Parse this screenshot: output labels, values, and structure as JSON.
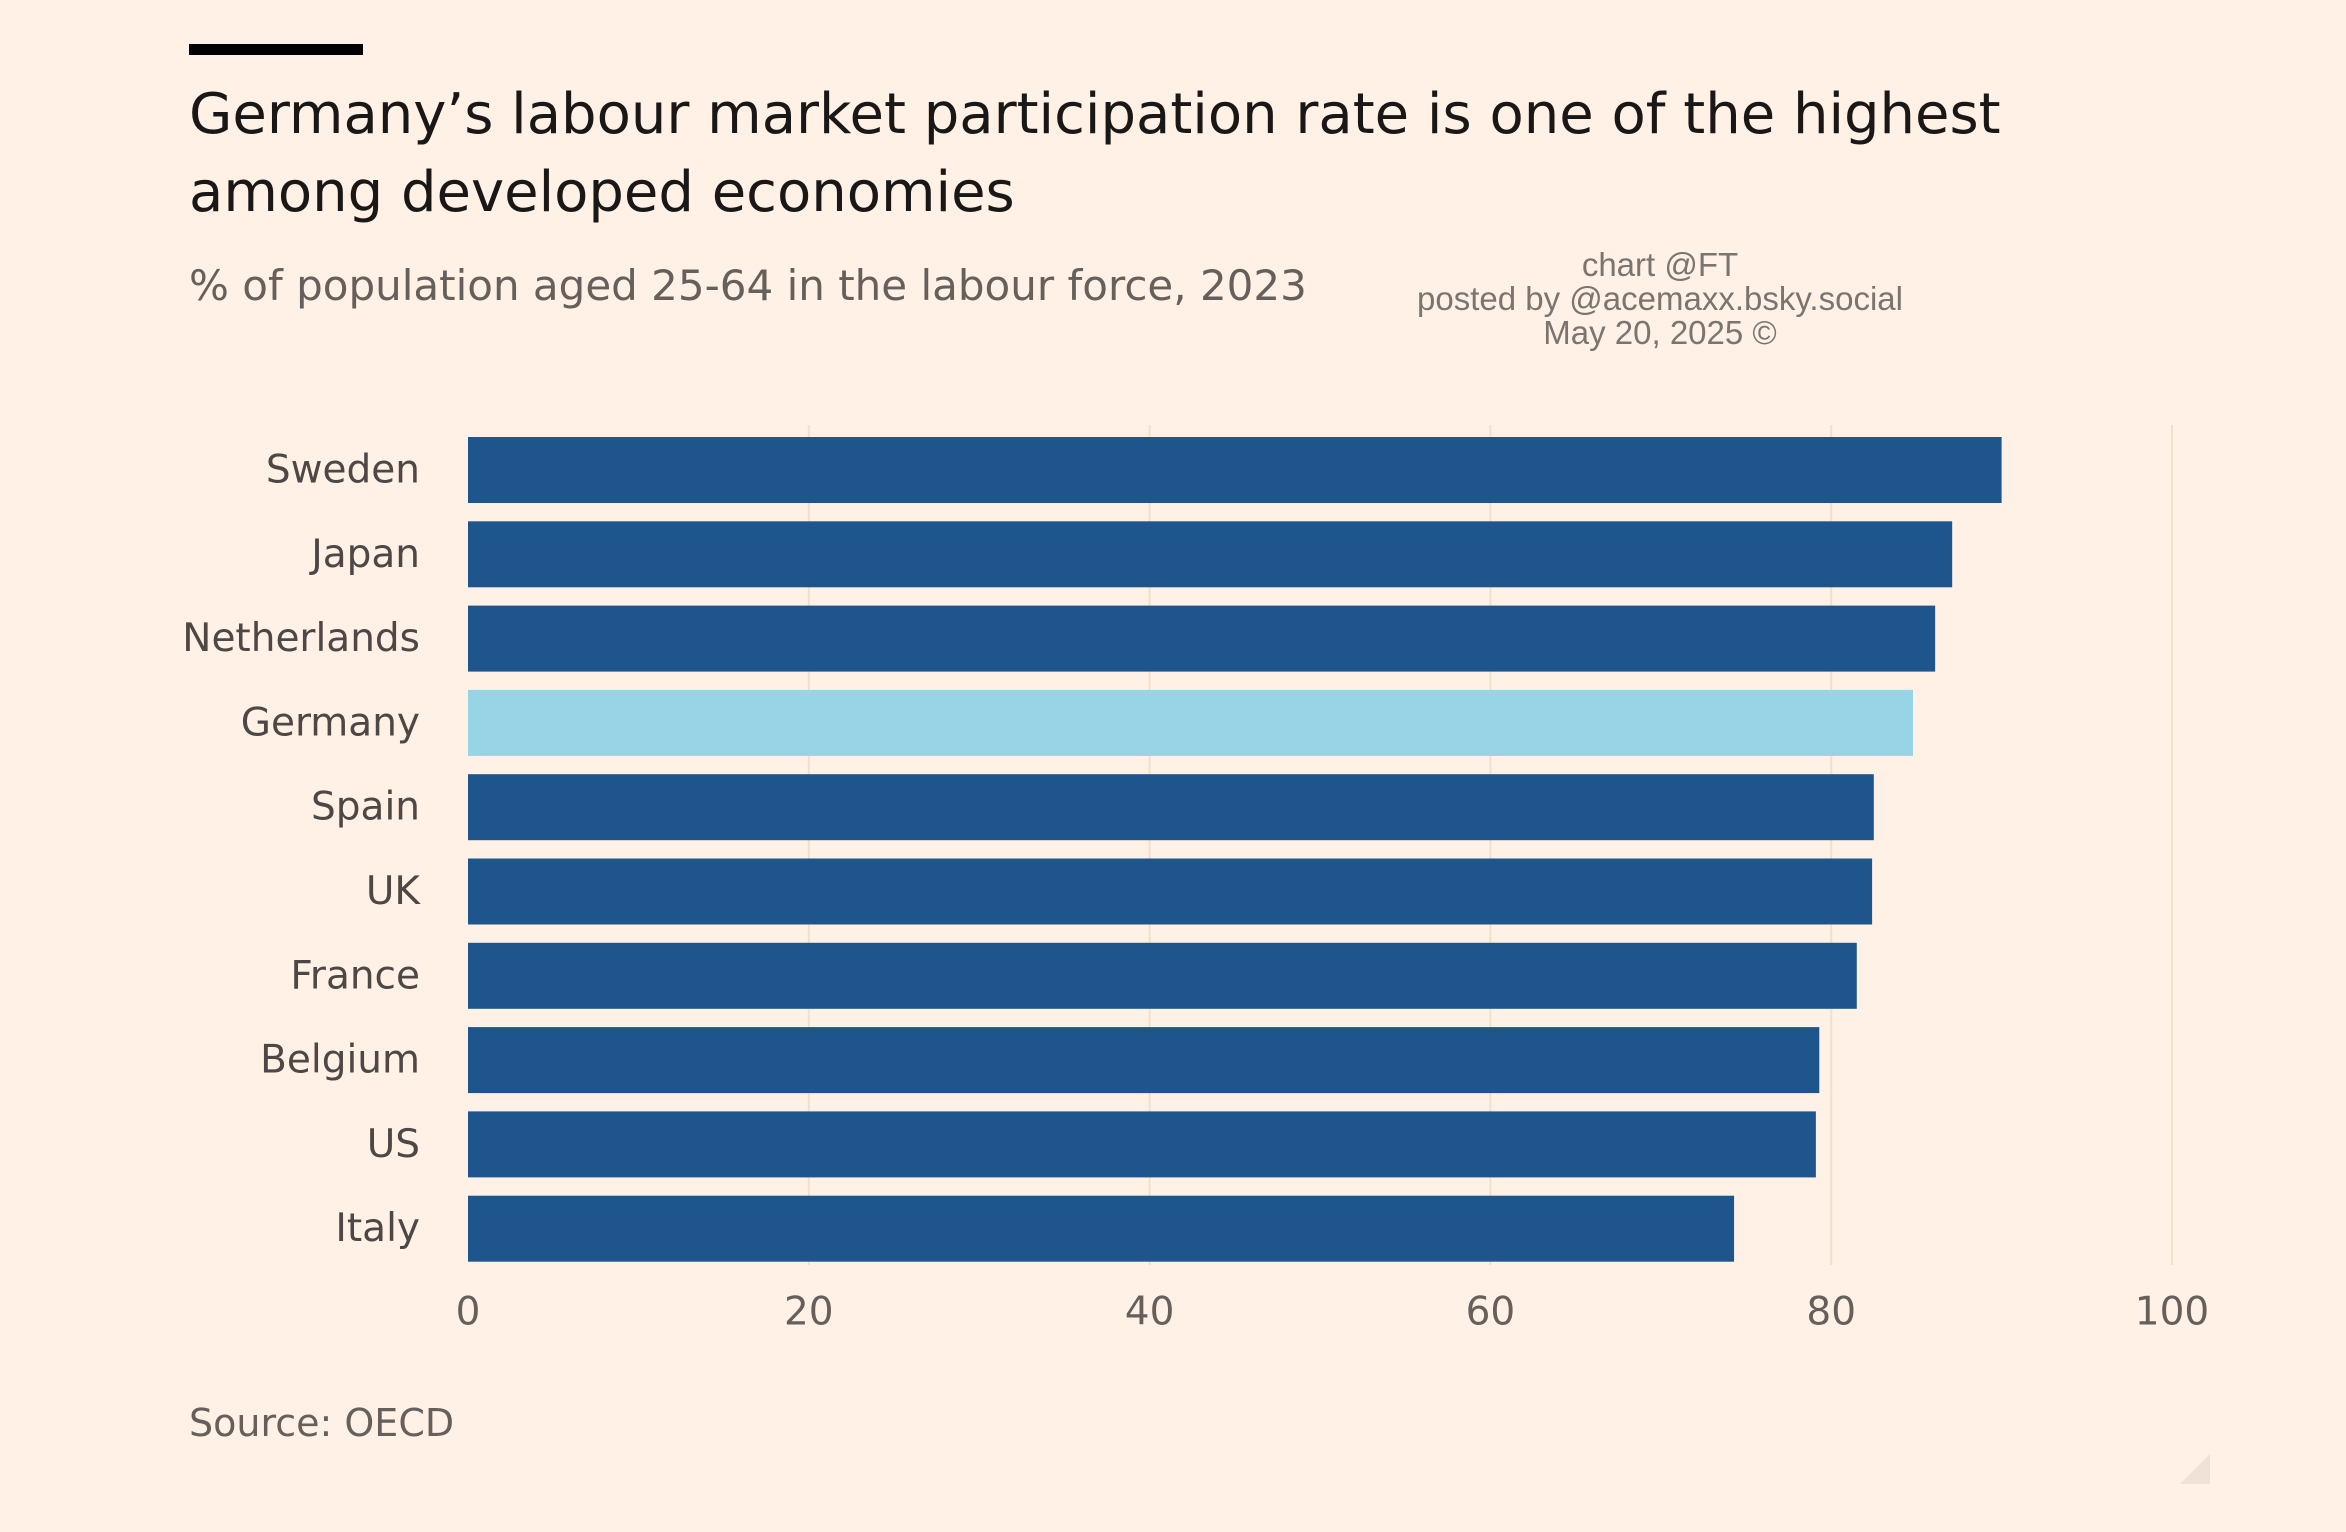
{
  "header": {
    "title": "Germany’s labour market participation rate is one of the highest among developed economies",
    "subtitle": "% of population aged 25-64 in the labour force, 2023"
  },
  "watermark": {
    "line1": "chart @FT",
    "line2": "posted by @acemaxx.bsky.social",
    "line3": "May 20, 2025 ©"
  },
  "footer": {
    "source": "Source: OECD"
  },
  "colors": {
    "background": "#fff1e5",
    "bar": "#1e558c",
    "highlight_bar": "#96d4e6",
    "gridline": "#f2dfce"
  },
  "chart_data": {
    "type": "bar",
    "orientation": "horizontal",
    "title": "Germany’s labour market participation rate is one of the highest among developed economies",
    "subtitle": "% of population aged 25-64 in the labour force, 2023",
    "categories": [
      "Sweden",
      "Japan",
      "Netherlands",
      "Germany",
      "Spain",
      "UK",
      "France",
      "Belgium",
      "US",
      "Italy"
    ],
    "values": [
      90.0,
      87.1,
      86.1,
      84.8,
      82.5,
      82.4,
      81.5,
      79.3,
      79.1,
      74.3
    ],
    "highlight": "Germany",
    "xlim": [
      0,
      100
    ],
    "xticks": [
      0,
      20,
      40,
      60,
      80,
      100
    ],
    "xlabel": "",
    "ylabel": "",
    "grid": true,
    "source": "Source: OECD"
  }
}
